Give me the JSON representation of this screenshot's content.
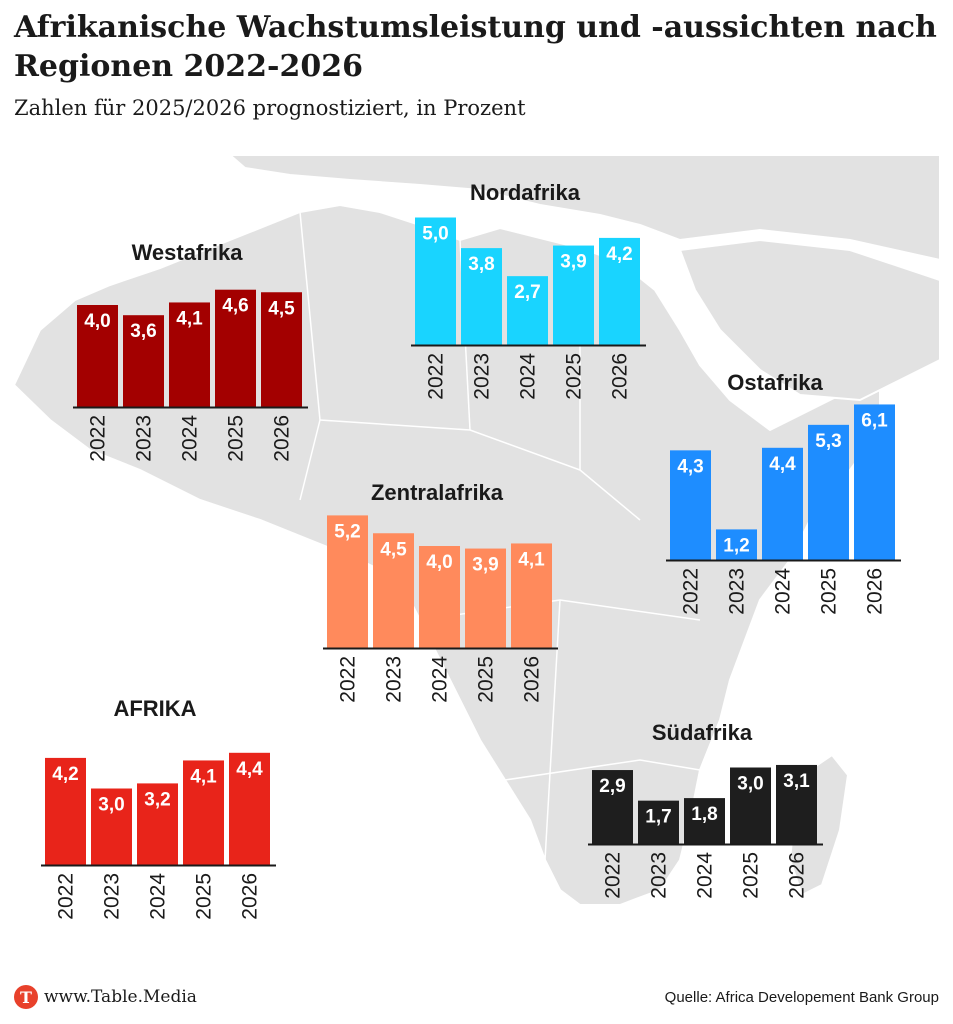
{
  "header": {
    "title": "Afrikanische Wachstumsleistung und -aussichten nach Regionen 2022-2026",
    "subtitle": "Zahlen für 2025/2026 prognostiziert, in Prozent"
  },
  "footer": {
    "logo_letter": "T",
    "logo_text": "www.Table.Media",
    "source": "Quelle:  Africa Developement Bank Group"
  },
  "colors": {
    "map": "#e2e2e2",
    "map_border": "#ffffff",
    "westafrika": "#a30000",
    "nordafrika": "#19d4ff",
    "ostafrika": "#1e8dff",
    "zentralafrika": "#ff8a5c",
    "suedafrika": "#1e1e1e",
    "afrika": "#e8241a"
  },
  "chart_data": [
    {
      "type": "bar",
      "title": "Westafrika",
      "categories": [
        "2022",
        "2023",
        "2024",
        "2025",
        "2026"
      ],
      "values": [
        4.0,
        3.6,
        4.1,
        4.6,
        4.5
      ],
      "labels": [
        "4,0",
        "3,6",
        "4,1",
        "4,6",
        "4,5"
      ],
      "color": "#a30000"
    },
    {
      "type": "bar",
      "title": "Nordafrika",
      "categories": [
        "2022",
        "2023",
        "2024",
        "2025",
        "2026"
      ],
      "values": [
        5.0,
        3.8,
        2.7,
        3.9,
        4.2
      ],
      "labels": [
        "5,0",
        "3,8",
        "2,7",
        "3,9",
        "4,2"
      ],
      "color": "#19d4ff"
    },
    {
      "type": "bar",
      "title": "Ostafrika",
      "categories": [
        "2022",
        "2023",
        "2024",
        "2025",
        "2026"
      ],
      "values": [
        4.3,
        1.2,
        4.4,
        5.3,
        6.1
      ],
      "labels": [
        "4,3",
        "1,2",
        "4,4",
        "5,3",
        "6,1"
      ],
      "color": "#1e8dff"
    },
    {
      "type": "bar",
      "title": "Zentralafrika",
      "categories": [
        "2022",
        "2023",
        "2024",
        "2025",
        "2026"
      ],
      "values": [
        5.2,
        4.5,
        4.0,
        3.9,
        4.1
      ],
      "labels": [
        "5,2",
        "4,5",
        "4,0",
        "3,9",
        "4,1"
      ],
      "color": "#ff8a5c"
    },
    {
      "type": "bar",
      "title": "Südafrika",
      "categories": [
        "2022",
        "2023",
        "2024",
        "2025",
        "2026"
      ],
      "values": [
        2.9,
        1.7,
        1.8,
        3.0,
        3.1
      ],
      "labels": [
        "2,9",
        "1,7",
        "1,8",
        "3,0",
        "3,1"
      ],
      "color": "#1e1e1e"
    },
    {
      "type": "bar",
      "title": "AFRIKA",
      "categories": [
        "2022",
        "2023",
        "2024",
        "2025",
        "2026"
      ],
      "values": [
        4.2,
        3.0,
        3.2,
        4.1,
        4.4
      ],
      "labels": [
        "4,2",
        "3,0",
        "3,2",
        "4,1",
        "4,4"
      ],
      "color": "#e8241a"
    }
  ]
}
